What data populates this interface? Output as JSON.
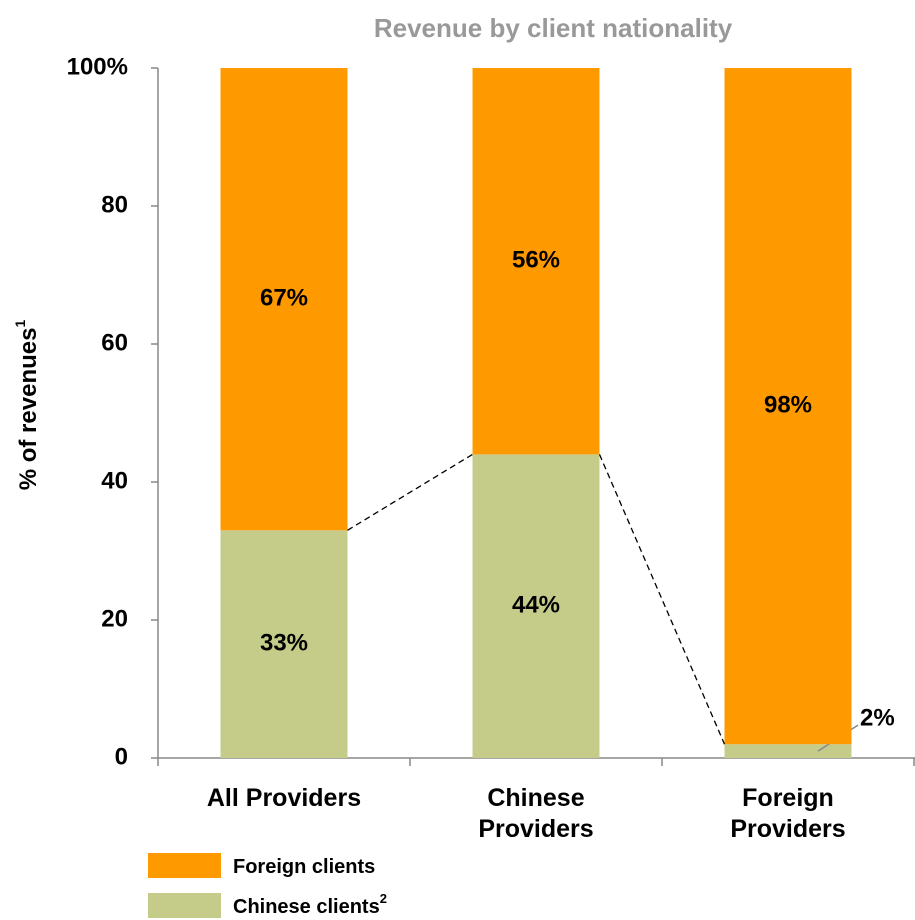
{
  "chart_data": {
    "type": "stacked_bar",
    "title": "Revenue by client nationality",
    "y_label": "% of revenues",
    "y_label_note": "1",
    "categories": [
      "All Providers",
      "Chinese Providers",
      "Foreign Providers"
    ],
    "series": [
      {
        "name": "Chinese clients",
        "name_note": "2",
        "color": "#c5cc8a",
        "values": [
          33,
          44,
          2
        ],
        "value_labels": [
          "33%",
          "44%",
          "2%"
        ]
      },
      {
        "name": "Foreign clients",
        "color": "#ff9900",
        "values": [
          67,
          56,
          98
        ],
        "value_labels": [
          "67%",
          "56%",
          "98%"
        ]
      }
    ],
    "ylim": [
      0,
      100
    ],
    "yticks": [
      0,
      20,
      40,
      60,
      80,
      {
        "value": 100,
        "label": "100%"
      }
    ],
    "grid": false
  }
}
